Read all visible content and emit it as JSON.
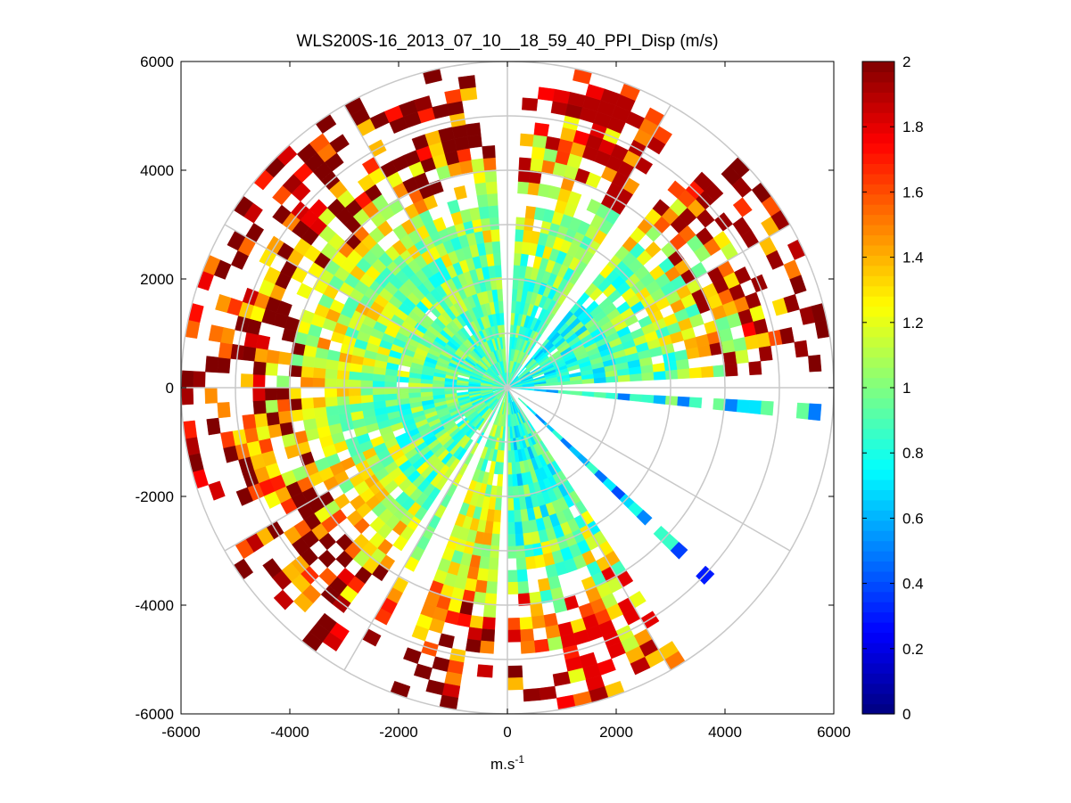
{
  "chart_data": {
    "type": "heatmap",
    "subtype": "polar-ppi",
    "title": "WLS200S-16_2013_07_10__18_59_40_PPI_Disp (m/s)",
    "xlabel": "m.s",
    "xlabel_superscript": "-1",
    "ylabel": "",
    "xlim": [
      -6000,
      6000
    ],
    "ylim": [
      -6000,
      6000
    ],
    "xticks": [
      -6000,
      -4000,
      -2000,
      0,
      2000,
      4000,
      6000
    ],
    "yticks": [
      6000,
      4000,
      2000,
      0,
      -2000,
      -4000,
      -6000
    ],
    "xtick_labels": [
      "-6000",
      "-4000",
      "-2000",
      "0",
      "2000",
      "4000",
      "6000"
    ],
    "ytick_labels": [
      "6000",
      "4000",
      "2000",
      "0",
      "-2000",
      "-4000",
      "-6000"
    ],
    "grid": true,
    "polar_grid": {
      "ring_radii": [
        1000,
        2000,
        3000,
        4000,
        5000,
        6000
      ],
      "spoke_angles_deg": [
        0,
        30,
        60,
        90,
        120,
        150,
        180,
        210,
        240,
        270,
        300,
        330
      ]
    },
    "colorbar": {
      "min": 0,
      "max": 2,
      "colormap": "jet",
      "ticks": [
        2,
        1.8,
        1.6,
        1.4,
        1.2,
        1,
        0.8,
        0.6,
        0.4,
        0.2,
        0
      ],
      "tick_labels": [
        "2",
        "1.8",
        "1.6",
        "1.4",
        "1.2",
        "1",
        "0.8",
        "0.6",
        "0.4",
        "0.2",
        "0"
      ]
    },
    "scan": {
      "azimuth_step_deg": 3,
      "range_step": 220,
      "max_range": 6000,
      "data_gaps_deg": [
        [
          357,
          3
        ],
        [
          31,
          37
        ],
        [
          87,
          90
        ],
        [
          90,
          92
        ],
        [
          94,
          102
        ],
        [
          102,
          130
        ],
        [
          134,
          141
        ],
        [
          141,
          147
        ],
        [
          175,
          177
        ],
        [
          178,
          181
        ],
        [
          200,
          207
        ],
        [
          210,
          213
        ]
      ],
      "description_sectors": [
        {
          "az_from": 3,
          "az_to": 31,
          "typical_value": 0.9,
          "outer_value": 1.9
        },
        {
          "az_from": 37,
          "az_to": 87,
          "typical_value": 0.8,
          "outer_value": 1.95
        },
        {
          "az_from": 90,
          "az_to": 94,
          "typical_value": 0.75,
          "outer_value": 0.7
        },
        {
          "az_from": 130,
          "az_to": 134,
          "typical_value": 0.7,
          "outer_value": 0.3
        },
        {
          "az_from": 147,
          "az_to": 175,
          "typical_value": 0.8,
          "outer_value": 1.8
        },
        {
          "az_from": 181,
          "az_to": 200,
          "typical_value": 1.0,
          "outer_value": 2.0
        },
        {
          "az_from": 213,
          "az_to": 357,
          "typical_value": 0.9,
          "outer_value": 2.0
        }
      ]
    }
  }
}
